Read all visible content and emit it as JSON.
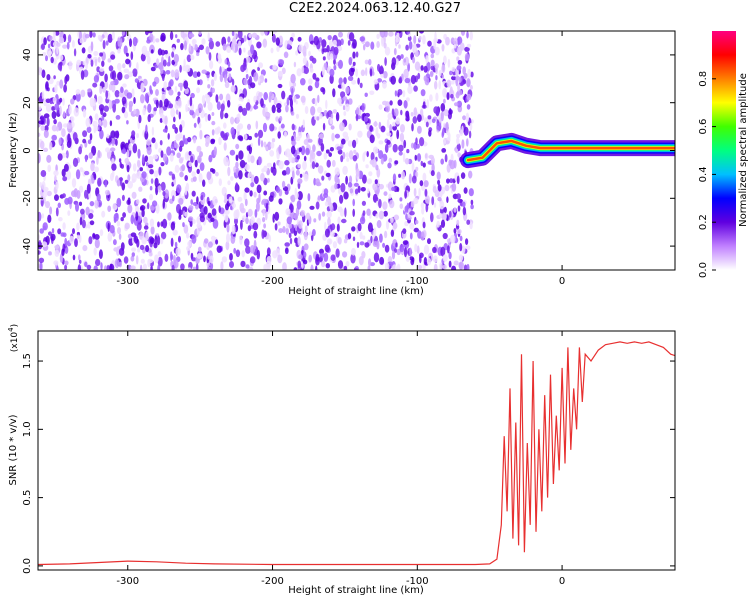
{
  "title": "C2E2.2024.063.12.40.G27",
  "chart_data": [
    {
      "type": "heatmap",
      "xlabel": "Height of straight line (km)",
      "ylabel": "Frequency (Hz)",
      "xlim": [
        -362,
        78
      ],
      "ylim": [
        -50,
        50
      ],
      "xticks": [
        -300,
        -200,
        -100,
        0
      ],
      "yticks": [
        -40,
        -20,
        0,
        20,
        40
      ],
      "noise_region_x": [
        -362,
        -62
      ],
      "signal_track": {
        "x": [
          -65,
          -55,
          -45,
          -35,
          -25,
          -15,
          -5,
          5,
          20,
          40,
          60,
          78
        ],
        "y": [
          -4,
          -3,
          3,
          4,
          2,
          1,
          1,
          1,
          1,
          1,
          1,
          1
        ]
      },
      "colorbar": {
        "label": "Normalized spectral amplitude",
        "range": [
          0.0,
          1.0
        ],
        "ticks": [
          "0.0",
          "0.2",
          "0.4",
          "0.6",
          "0.8"
        ],
        "colors": [
          "#ffffff",
          "#c080ff",
          "#6000e0",
          "#0000ff",
          "#00c0ff",
          "#00ff80",
          "#40ff00",
          "#ffff00",
          "#ff8000",
          "#ff0000",
          "#ff0080"
        ]
      }
    },
    {
      "type": "line",
      "xlabel": "Height of straight line (km)",
      "ylabel": "SNR (10 * v/v)",
      "y_multiplier": "(x10",
      "y_multiplier_exp": "4",
      "y_multiplier_close": ")",
      "xlim": [
        -362,
        78
      ],
      "ylim": [
        -0.03,
        1.72
      ],
      "xticks": [
        -300,
        -200,
        -100,
        0
      ],
      "yticks": [
        "0.0",
        "0.5",
        "1.0",
        "1.5"
      ],
      "ytick_values": [
        0.0,
        0.5,
        1.0,
        1.5
      ],
      "series": [
        {
          "color": "#e83030",
          "x": [
            -362,
            -340,
            -320,
            -300,
            -280,
            -260,
            -240,
            -200,
            -160,
            -120,
            -100,
            -80,
            -60,
            -50,
            -45,
            -42,
            -40,
            -38,
            -36,
            -34,
            -32,
            -30,
            -28,
            -26,
            -24,
            -22,
            -20,
            -18,
            -16,
            -14,
            -12,
            -10,
            -8,
            -6,
            -4,
            -2,
            0,
            2,
            4,
            6,
            8,
            10,
            12,
            14,
            16,
            20,
            25,
            30,
            35,
            40,
            45,
            50,
            55,
            60,
            65,
            70,
            75,
            78
          ],
          "y": [
            0.01,
            0.015,
            0.025,
            0.035,
            0.03,
            0.02,
            0.015,
            0.01,
            0.01,
            0.01,
            0.01,
            0.01,
            0.01,
            0.015,
            0.05,
            0.3,
            0.95,
            0.4,
            1.3,
            0.2,
            1.05,
            0.15,
            1.55,
            0.1,
            0.9,
            0.3,
            1.5,
            0.25,
            1.0,
            0.4,
            1.25,
            0.5,
            1.4,
            0.6,
            1.1,
            0.7,
            1.45,
            0.75,
            1.6,
            0.85,
            1.3,
            1.0,
            1.6,
            1.2,
            1.55,
            1.5,
            1.58,
            1.62,
            1.63,
            1.64,
            1.63,
            1.64,
            1.63,
            1.64,
            1.62,
            1.6,
            1.55,
            1.54
          ]
        }
      ]
    }
  ]
}
